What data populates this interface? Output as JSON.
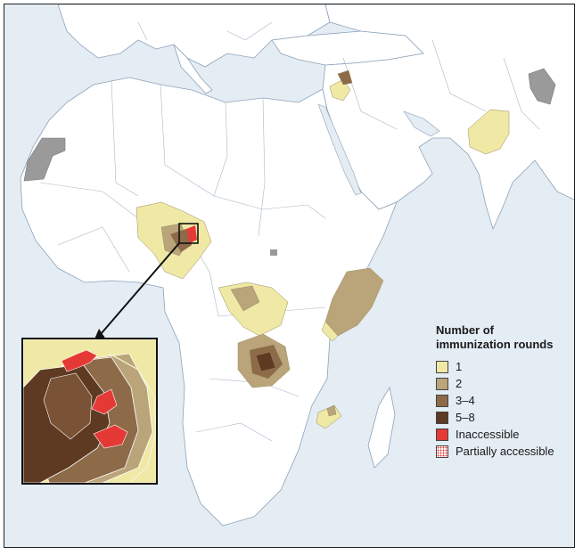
{
  "legend": {
    "title": "Number of immunization rounds",
    "items": [
      {
        "label": "1",
        "color": "#efe9a5"
      },
      {
        "label": "2",
        "color": "#baa57a"
      },
      {
        "label": "3–4",
        "color": "#8d6a48"
      },
      {
        "label": "5–8",
        "color": "#5e3a23"
      },
      {
        "label": "Inaccessible",
        "color": "#e53935"
      },
      {
        "label": "Partially accessible",
        "color": "#f7c4c4",
        "pattern": "dotted"
      }
    ]
  },
  "colors": {
    "ocean": "#e4ecf4",
    "land": "#ffffff",
    "other_region": "#9a9a9a",
    "borders": "#8fa3b8"
  }
}
